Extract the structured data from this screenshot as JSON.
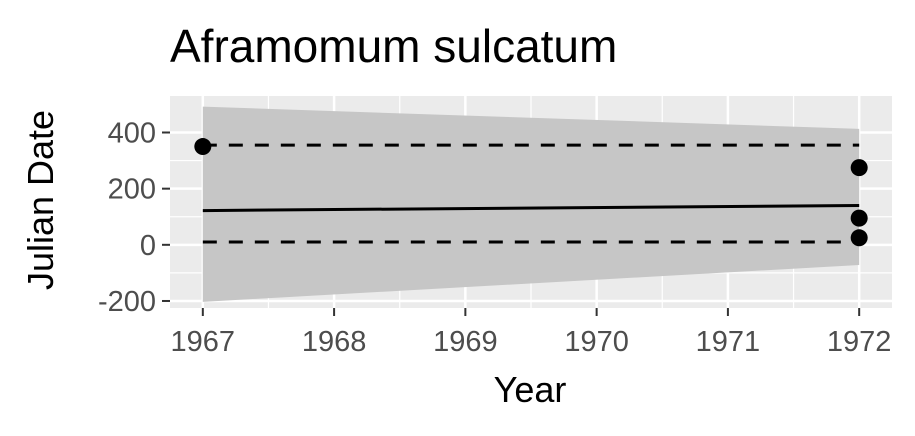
{
  "chart_data": {
    "type": "scatter",
    "title": "Aframomum sulcatum",
    "xlabel": "Year",
    "ylabel": "Julian Date",
    "xlim": [
      1966.75,
      1972.25
    ],
    "ylim": [
      -225,
      530
    ],
    "x_ticks": [
      1967,
      1968,
      1969,
      1970,
      1971,
      1972
    ],
    "y_ticks": [
      -200,
      0,
      200,
      400
    ],
    "x_tick_labels": [
      "1967",
      "1968",
      "1969",
      "1970",
      "1971",
      "1972"
    ],
    "y_tick_labels": [
      "-200",
      "0",
      "200",
      "400"
    ],
    "grid": true,
    "points": [
      {
        "x": 1967,
        "y": 350
      },
      {
        "x": 1972,
        "y": 275
      },
      {
        "x": 1972,
        "y": 95
      },
      {
        "x": 1972,
        "y": 25
      }
    ],
    "trend_line": {
      "x": [
        1967,
        1972
      ],
      "y": [
        122,
        140
      ]
    },
    "upper_dashed": {
      "x": [
        1967,
        1972
      ],
      "y": [
        355,
        355
      ]
    },
    "lower_dashed": {
      "x": [
        1967,
        1972
      ],
      "y": [
        10,
        10
      ]
    },
    "confidence_band": {
      "x": [
        1967,
        1972
      ],
      "upper": [
        492,
        413
      ],
      "lower": [
        -203,
        -72
      ]
    },
    "colors": {
      "panel_background": "#ebebeb",
      "grid": "#ffffff",
      "band": "#c6c6c6",
      "points": "#000000",
      "lines": "#000000"
    }
  }
}
